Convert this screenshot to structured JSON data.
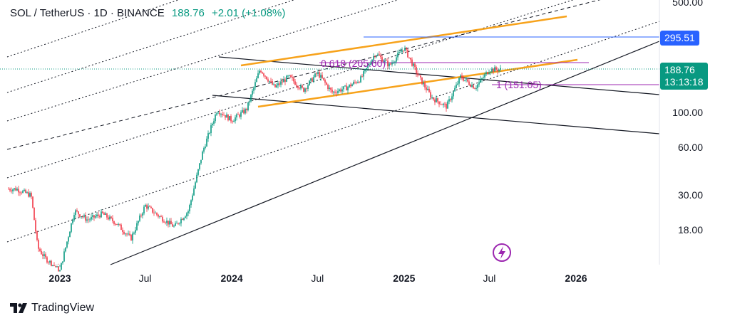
{
  "legend": {
    "symbol": "SOL / TetherUS · 1D · BINANCE",
    "price": "188.76",
    "change": "+2.01 (+1.08%)"
  },
  "price_badges": [
    {
      "label": "295.51",
      "color": "#2962ff"
    },
    {
      "label": "188.76",
      "sub": "13:13:18",
      "color": "#089981"
    }
  ],
  "annotations": {
    "fib_label": "0.618 (205.60)",
    "fib_label2": "1 (151.05)"
  },
  "brand": "TradingView",
  "chart_data": {
    "type": "candlestick",
    "scale": "log",
    "y_ticks": [
      "500.00",
      "100.00",
      "60.00",
      "30.00",
      "18.00"
    ],
    "x_ticks": [
      {
        "label": "2023",
        "bold": true
      },
      {
        "label": "Jul",
        "bold": false
      },
      {
        "label": "2024",
        "bold": true
      },
      {
        "label": "Jul",
        "bold": false
      },
      {
        "label": "2025",
        "bold": true
      },
      {
        "label": "Jul",
        "bold": false
      },
      {
        "label": "2026",
        "bold": true
      }
    ],
    "price_path": [
      [
        "2022-10",
        33
      ],
      [
        "2022-11",
        30
      ],
      [
        "2022-11-15",
        14
      ],
      [
        "2022-12",
        12
      ],
      [
        "2023-01",
        10
      ],
      [
        "2023-02",
        24
      ],
      [
        "2023-03",
        21
      ],
      [
        "2023-04",
        23
      ],
      [
        "2023-05",
        20
      ],
      [
        "2023-06",
        16
      ],
      [
        "2023-07",
        26
      ],
      [
        "2023-08",
        22
      ],
      [
        "2023-09",
        19
      ],
      [
        "2023-10",
        24
      ],
      [
        "2023-11",
        58
      ],
      [
        "2023-12",
        105
      ],
      [
        "2024-01",
        90
      ],
      [
        "2024-02",
        105
      ],
      [
        "2024-03",
        190
      ],
      [
        "2024-04",
        145
      ],
      [
        "2024-05",
        170
      ],
      [
        "2024-06",
        140
      ],
      [
        "2024-07",
        180
      ],
      [
        "2024-08",
        135
      ],
      [
        "2024-09",
        145
      ],
      [
        "2024-10",
        165
      ],
      [
        "2024-11",
        240
      ],
      [
        "2024-12",
        200
      ],
      [
        "2025-01",
        260
      ],
      [
        "2025-02",
        170
      ],
      [
        "2025-03",
        125
      ],
      [
        "2025-04",
        110
      ],
      [
        "2025-05",
        170
      ],
      [
        "2025-06",
        145
      ],
      [
        "2025-07",
        188.76
      ]
    ],
    "levels": [
      295.51,
      205.6,
      188.76,
      151.05
    ]
  }
}
